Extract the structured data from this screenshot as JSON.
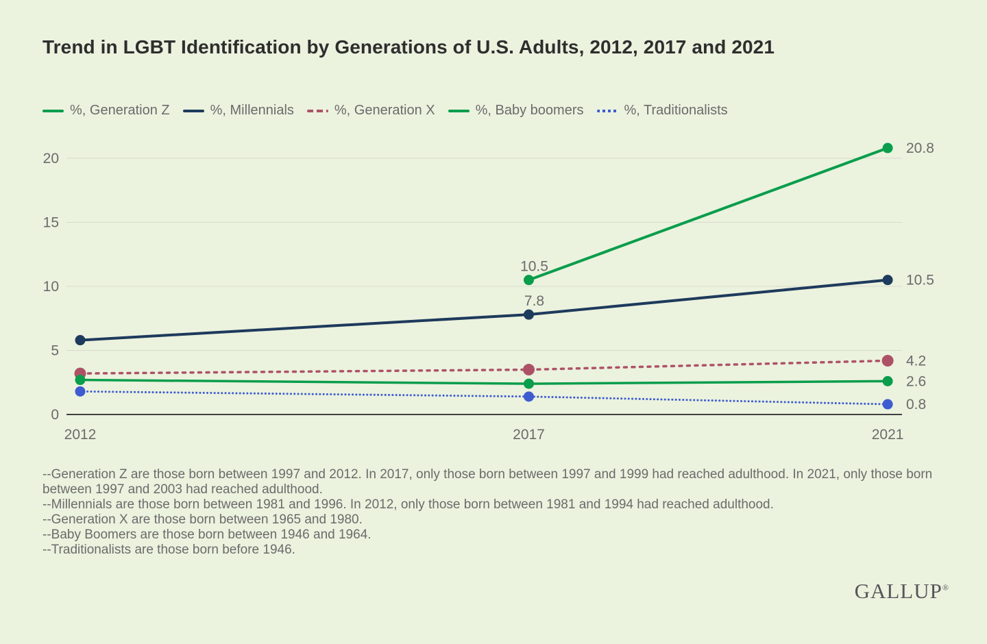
{
  "title": "Trend in LGBT Identification by Generations of U.S. Adults, 2012, 2017 and 2021",
  "colors": {
    "background": "#EBF2DE",
    "title_text": "#2E2E2E",
    "muted_text": "#6B6B6B",
    "gridline": "#D7DACC",
    "axis_line": "#3F3F3F",
    "green": "#0A9D4C",
    "navy": "#1E3A5C",
    "maroon": "#AD5266",
    "blue": "#3E5CD0"
  },
  "chart_data": {
    "type": "line",
    "x_ticks": [
      2012,
      2017,
      2021
    ],
    "x_tick_labels": [
      "2012",
      "2017",
      "2021"
    ],
    "y_ticks": [
      0,
      5,
      10,
      15,
      20
    ],
    "ylim": [
      0,
      22
    ],
    "grid": "horizontal",
    "legend_position": "top",
    "series": [
      {
        "id": "generation-z",
        "name": "%, Generation Z",
        "color": "#0A9D4C",
        "style": "solid",
        "x": [
          2017,
          2021
        ],
        "values": [
          10.5,
          20.8
        ],
        "labels": [
          {
            "year": 2017,
            "text": "10.5",
            "placement": "above"
          },
          {
            "year": 2021,
            "text": "20.8",
            "placement": "right"
          }
        ]
      },
      {
        "id": "millennials",
        "name": "%, Millennials",
        "color": "#1E3A5C",
        "style": "solid",
        "x": [
          2012,
          2017,
          2021
        ],
        "values": [
          5.8,
          7.8,
          10.5
        ],
        "labels": [
          {
            "year": 2017,
            "text": "7.8",
            "placement": "above"
          },
          {
            "year": 2021,
            "text": "10.5",
            "placement": "right"
          }
        ]
      },
      {
        "id": "generation-x",
        "name": "%, Generation X",
        "color": "#AD5266",
        "style": "dashed",
        "x": [
          2012,
          2017,
          2021
        ],
        "values": [
          3.2,
          3.5,
          4.2
        ],
        "labels": [
          {
            "year": 2021,
            "text": "4.2",
            "placement": "right"
          }
        ]
      },
      {
        "id": "baby-boomers",
        "name": "%, Baby boomers",
        "color": "#0A9D4C",
        "style": "solid",
        "x": [
          2012,
          2017,
          2021
        ],
        "values": [
          2.7,
          2.4,
          2.6
        ],
        "labels": [
          {
            "year": 2021,
            "text": "2.6",
            "placement": "right"
          }
        ]
      },
      {
        "id": "traditionalists",
        "name": "%, Traditionalists",
        "color": "#3E5CD0",
        "style": "dotted",
        "x": [
          2012,
          2017,
          2021
        ],
        "values": [
          1.8,
          1.4,
          0.8
        ],
        "labels": [
          {
            "year": 2021,
            "text": "0.8",
            "placement": "right"
          }
        ]
      }
    ]
  },
  "footnotes": [
    "--Generation Z are those born between 1997 and 2012. In 2017, only those born between 1997 and 1999 had reached adulthood. In 2021, only those born between 1997 and 2003 had reached adulthood.",
    "--Millennials are those born between 1981 and 1996. In 2012, only those born between 1981 and 1994 had reached adulthood.",
    "--Generation X are those born between 1965 and 1980.",
    "--Baby Boomers are those born between 1946 and 1964.",
    "--Traditionalists are those born before 1946."
  ],
  "logo": {
    "text": "GALLUP",
    "reg": "®"
  }
}
